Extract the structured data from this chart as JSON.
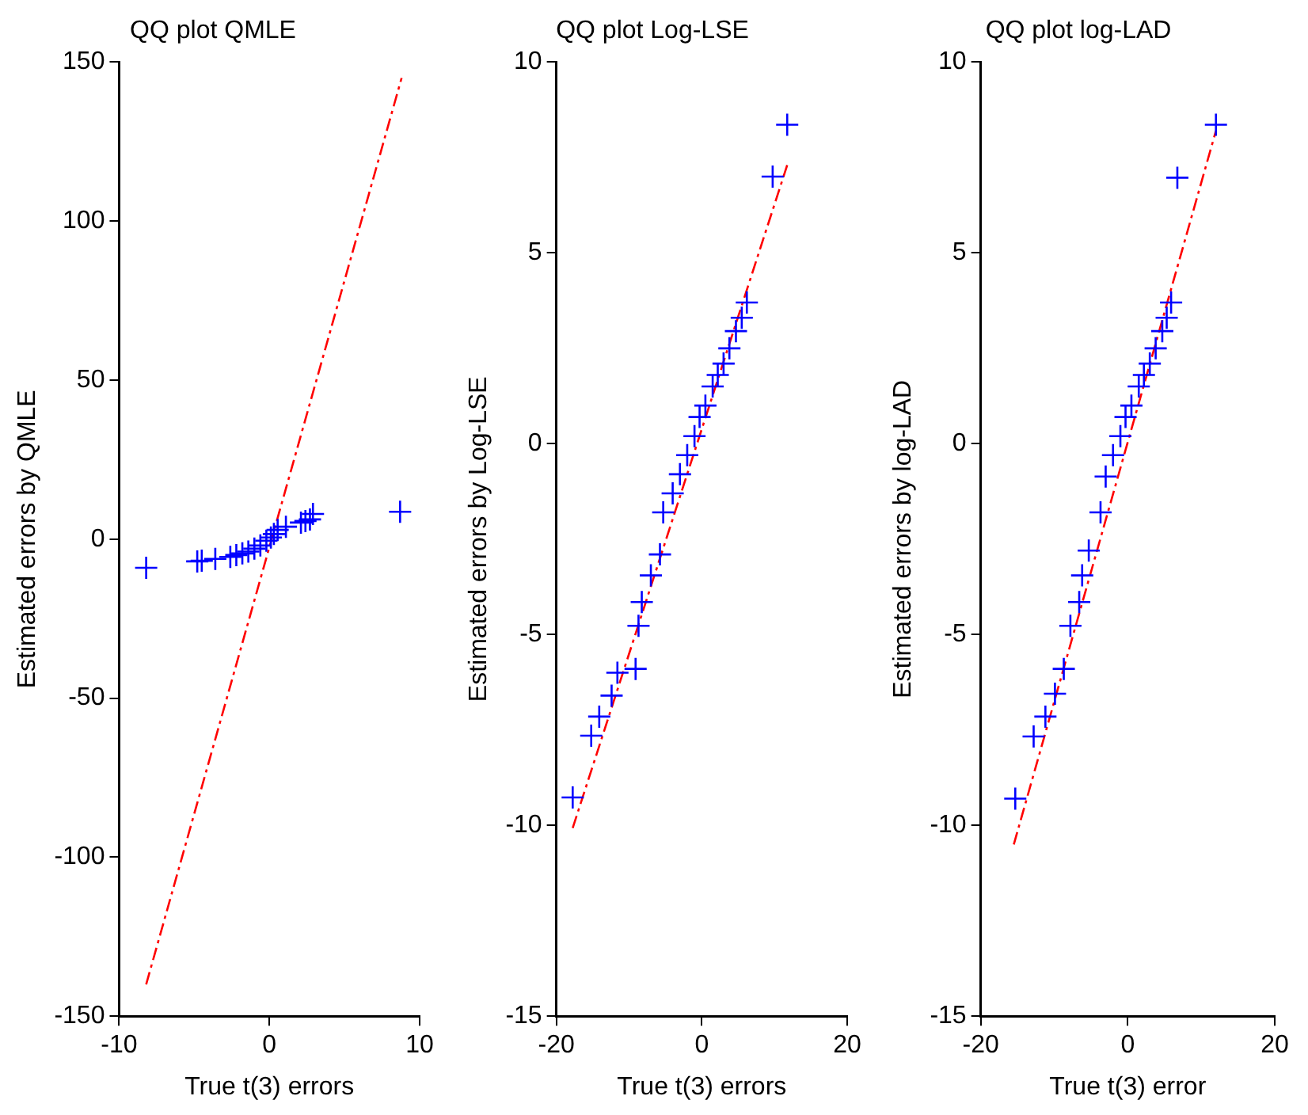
{
  "chart_data": [
    {
      "type": "scatter",
      "title": "QQ plot QMLE",
      "xlabel": "True t(3) errors",
      "ylabel": "Estimated errors by QMLE",
      "xlim": [
        -10,
        10
      ],
      "xticks": [
        -10,
        0,
        10
      ],
      "ylim": [
        -150,
        150
      ],
      "yticks": [
        -150,
        -100,
        -50,
        0,
        50,
        100,
        150
      ],
      "legend": false,
      "series": [
        {
          "type": "scatter",
          "marker": "cross",
          "color": "#0000ff",
          "x": [
            -8.2,
            -4.8,
            -4.5,
            -3.6,
            -2.6,
            -2.2,
            -1.8,
            -1.4,
            -1.0,
            -0.6,
            -0.2,
            0.1,
            0.3,
            0.55,
            1.1,
            2.1,
            2.4,
            2.7,
            2.9,
            8.7
          ],
          "values": [
            -9,
            -7,
            -6.8,
            -6.2,
            -5.6,
            -5,
            -4.5,
            -3.9,
            -3,
            -2,
            -0.5,
            0.5,
            1.6,
            2.9,
            3.9,
            5.2,
            5.7,
            6.2,
            7.9,
            8.6
          ]
        },
        {
          "type": "line",
          "marker": "none",
          "line_style": "dashed",
          "color": "#ff0000",
          "x": [
            -8.2,
            8.8
          ],
          "values": [
            -140,
            145
          ]
        }
      ]
    },
    {
      "type": "scatter",
      "title": "QQ plot Log-LSE",
      "xlabel": "True t(3) errors",
      "ylabel": "Estimated errors by Log-LSE",
      "xlim": [
        -20,
        20
      ],
      "xticks": [
        -20,
        0,
        20
      ],
      "ylim": [
        -15,
        10
      ],
      "yticks": [
        -15,
        -10,
        -5,
        0,
        5,
        10
      ],
      "legend": false,
      "series": [
        {
          "type": "scatter",
          "marker": "cross",
          "color": "#0000ff",
          "x": [
            -17.75,
            -15.2,
            -14.1,
            -12.4,
            -11.6,
            -9.1,
            -8.7,
            -8.25,
            -7,
            -5.75,
            -5.3,
            -4,
            -3,
            -2,
            -1,
            -0.3,
            0.5,
            1.5,
            2.2,
            3,
            3.8,
            4.7,
            5.5,
            6.2,
            9.75,
            11.75
          ],
          "values": [
            -9.27,
            -7.65,
            -7.15,
            -6.6,
            -6.0,
            -5.9,
            -4.77,
            -4.15,
            -3.45,
            -2.9,
            -1.8,
            -1.3,
            -0.8,
            -0.3,
            0.2,
            0.7,
            1.0,
            1.5,
            1.8,
            2.1,
            2.5,
            2.95,
            3.3,
            3.7,
            7.0,
            8.36
          ]
        },
        {
          "type": "line",
          "marker": "none",
          "line_style": "dashed",
          "color": "#ff0000",
          "x": [
            -17.75,
            11.75
          ],
          "values": [
            -10.07,
            7.3
          ]
        }
      ]
    },
    {
      "type": "scatter",
      "title": "QQ plot log-LAD",
      "xlabel": "True t(3) error",
      "ylabel": "Estimated errors by log-LAD",
      "xlim": [
        -20,
        20
      ],
      "xticks": [
        -20,
        0,
        20
      ],
      "ylim": [
        -15,
        10
      ],
      "yticks": [
        -15,
        -10,
        -5,
        0,
        5,
        10
      ],
      "legend": false,
      "series": [
        {
          "type": "scatter",
          "marker": "cross",
          "color": "#0000ff",
          "x": [
            -15.3,
            -12.8,
            -11.2,
            -9.9,
            -8.7,
            -7.8,
            -6.6,
            -6.2,
            -5.3,
            -3.7,
            -3,
            -2,
            -1,
            -0.3,
            0.5,
            1.5,
            2.2,
            3,
            3.8,
            4.7,
            5.3,
            5.9,
            6.75,
            12
          ],
          "values": [
            -9.3,
            -7.67,
            -7.15,
            -6.55,
            -5.9,
            -4.77,
            -4.15,
            -3.45,
            -2.8,
            -1.8,
            -0.86,
            -0.3,
            0.2,
            0.7,
            1.0,
            1.5,
            1.8,
            2.1,
            2.5,
            2.95,
            3.3,
            3.7,
            6.97,
            8.36
          ]
        },
        {
          "type": "line",
          "marker": "none",
          "line_style": "dashed",
          "color": "#ff0000",
          "x": [
            -15.5,
            12
          ],
          "values": [
            -10.5,
            8.2
          ]
        }
      ]
    }
  ]
}
